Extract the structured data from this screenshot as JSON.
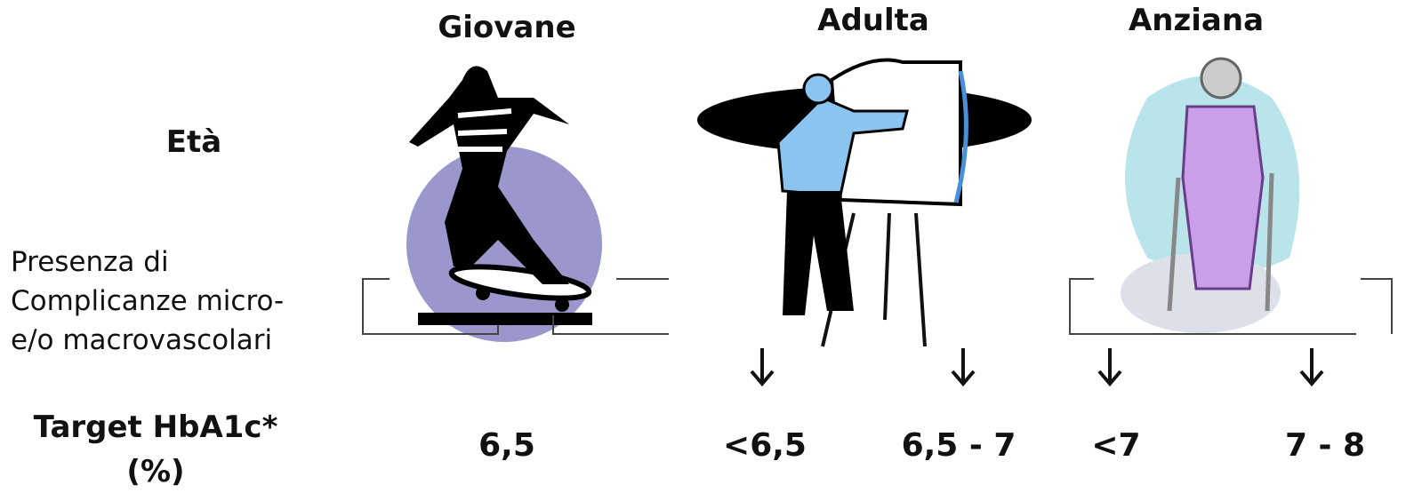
{
  "columns": [
    {
      "label": "Giovane"
    },
    {
      "label": "Adulta"
    },
    {
      "label": "Anziana"
    }
  ],
  "age_label": "Età",
  "complications_label": [
    "Presenza di",
    "Complicanze micro-",
    "e/o macrovascolari"
  ],
  "target_label": [
    "Target HbA1c*",
    "(%)"
  ],
  "targets": [
    "6,5",
    "<6,5",
    "6,5 - 7",
    "<7",
    "7 - 8"
  ]
}
